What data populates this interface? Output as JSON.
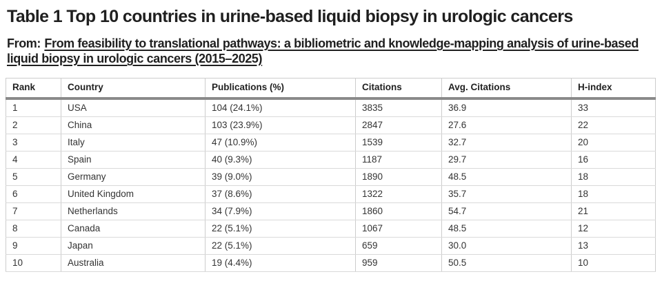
{
  "header": {
    "title": "Table 1 Top 10 countries in urine-based liquid biopsy in urologic cancers",
    "from_label": "From:",
    "article_link": "From feasibility to translational pathways: a bibliometric and knowledge-mapping analysis of urine-based liquid biopsy in urologic cancers (2015–2025)"
  },
  "table": {
    "columns": [
      "Rank",
      "Country",
      "Publications (%)",
      "Citations",
      "Avg. Citations",
      "H-index"
    ],
    "rows": [
      [
        "1",
        "USA",
        "104 (24.1%)",
        "3835",
        "36.9",
        "33"
      ],
      [
        "2",
        "China",
        "103 (23.9%)",
        "2847",
        "27.6",
        "22"
      ],
      [
        "3",
        "Italy",
        "47 (10.9%)",
        "1539",
        "32.7",
        "20"
      ],
      [
        "4",
        "Spain",
        "40 (9.3%)",
        "1187",
        "29.7",
        "16"
      ],
      [
        "5",
        "Germany",
        "39 (9.0%)",
        "1890",
        "48.5",
        "18"
      ],
      [
        "6",
        "United Kingdom",
        "37 (8.6%)",
        "1322",
        "35.7",
        "18"
      ],
      [
        "7",
        "Netherlands",
        "34 (7.9%)",
        "1860",
        "54.7",
        "21"
      ],
      [
        "8",
        "Canada",
        "22 (5.1%)",
        "1067",
        "48.5",
        "12"
      ],
      [
        "9",
        "Japan",
        "22 (5.1%)",
        "659",
        "30.0",
        "13"
      ],
      [
        "10",
        "Australia",
        "19 (4.4%)",
        "959",
        "50.5",
        "10"
      ]
    ]
  },
  "colors": {
    "title_text": "#1f1f1f",
    "table_text": "#333333",
    "grid_border": "#cccccc",
    "row_divider": "#d9d9d9",
    "header_rule": "#8a8a8a",
    "background": "#ffffff"
  }
}
